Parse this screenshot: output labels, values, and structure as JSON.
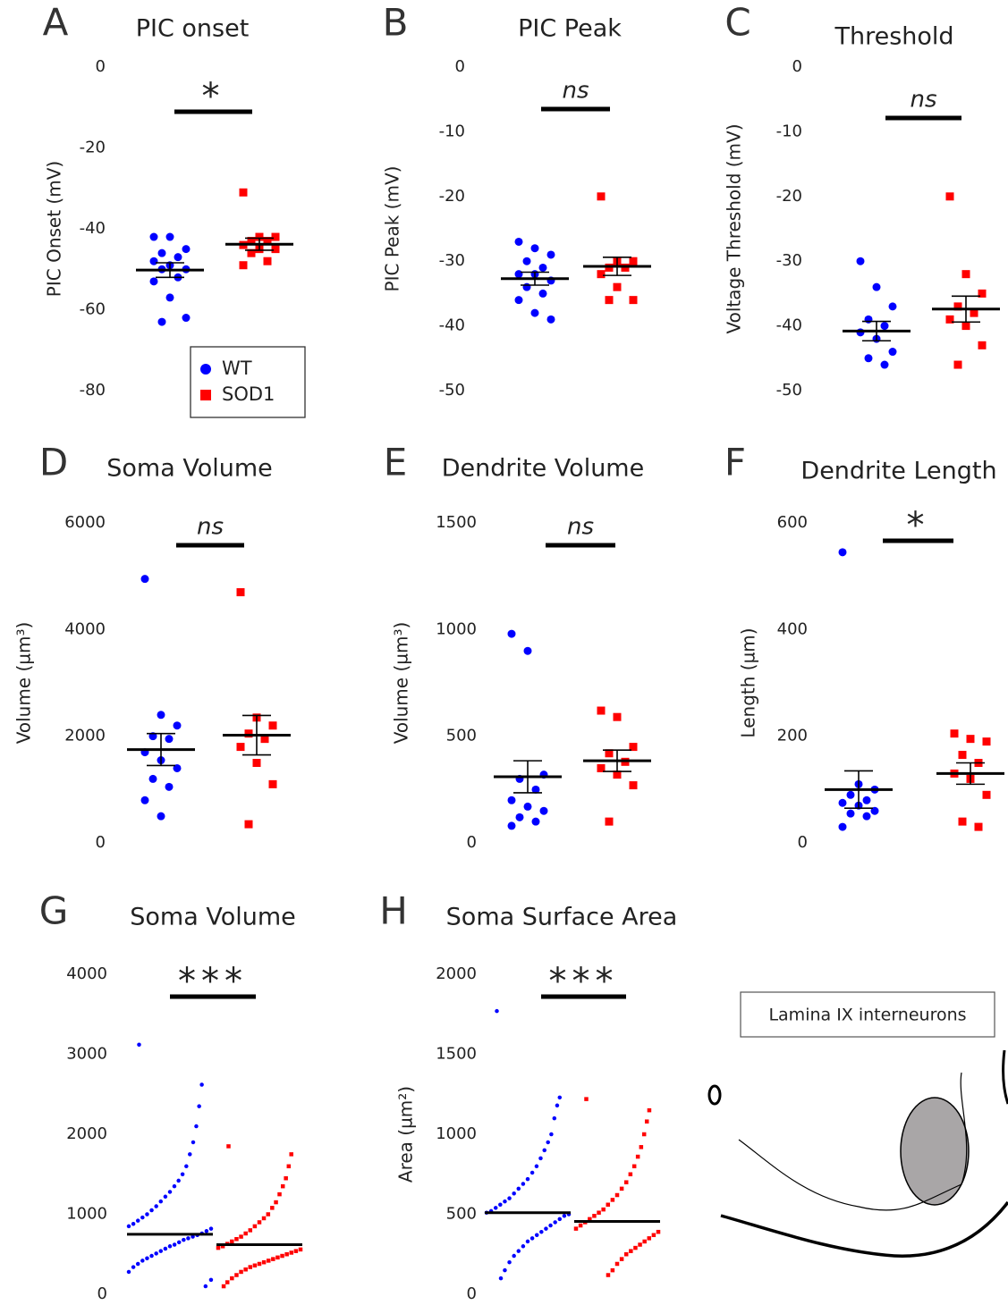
{
  "chart_data": [
    {
      "type": "strip",
      "letter": "A",
      "title": "PIC onset",
      "ylabel": "PIC Onset (mV)",
      "ylim": [
        -80,
        0
      ],
      "yticks": [
        0,
        -20,
        -40,
        -60,
        -80
      ],
      "significance": "*",
      "legend": true,
      "series": [
        {
          "name": "WT",
          "color": "#0000ff",
          "values": [
            -42,
            -42,
            -45,
            -46,
            -47,
            -48,
            -49,
            -50,
            -50,
            -52,
            -53,
            -57,
            -62,
            -63
          ],
          "mean": -50.2,
          "sem": 1.8
        },
        {
          "name": "SOD1",
          "color": "#ff0000",
          "values": [
            -31,
            -42,
            -42,
            -43,
            -43,
            -44,
            -45,
            -45,
            -46,
            -48,
            -49
          ],
          "mean": -43.8,
          "sem": 1.5
        }
      ]
    },
    {
      "type": "strip",
      "letter": "B",
      "title": "PIC Peak",
      "ylabel": "PIC Peak (mV)",
      "ylim": [
        -50,
        0
      ],
      "yticks": [
        0,
        -10,
        -20,
        -30,
        -40,
        -50
      ],
      "significance": "ns",
      "series": [
        {
          "color": "#0000ff",
          "values": [
            -27,
            -28,
            -29,
            -30,
            -31,
            -32,
            -32,
            -33,
            -34,
            -35,
            -36,
            -38,
            -39
          ],
          "mean": -32.7,
          "sem": 1.0
        },
        {
          "color": "#ff0000",
          "values": [
            -20,
            -30,
            -30,
            -31,
            -31,
            -32,
            -34,
            -36,
            -36
          ],
          "mean": -30.8,
          "sem": 1.4
        }
      ]
    },
    {
      "type": "strip",
      "letter": "C",
      "title": "Threshold",
      "ylabel": "Voltage Threshold (mV)",
      "ylim": [
        -50,
        0
      ],
      "yticks": [
        0,
        -10,
        -20,
        -30,
        -40,
        -50
      ],
      "significance": "ns",
      "series": [
        {
          "color": "#0000ff",
          "values": [
            -30,
            -34,
            -37,
            -39,
            -40,
            -41,
            -42,
            -44,
            -45,
            -46
          ],
          "mean": -40.8,
          "sem": 1.5
        },
        {
          "color": "#ff0000",
          "values": [
            -20,
            -32,
            -35,
            -37,
            -38,
            -39,
            -40,
            -43,
            -46
          ],
          "mean": -37.4,
          "sem": 2.0
        }
      ]
    },
    {
      "type": "strip",
      "letter": "D",
      "title": "Soma Volume",
      "ylabel": "Volume (µm³)",
      "ylim": [
        0,
        6000
      ],
      "yticks": [
        6000,
        4000,
        2000,
        0
      ],
      "significance": "ns",
      "series": [
        {
          "color": "#0000ff",
          "values": [
            4950,
            2400,
            2200,
            2000,
            1950,
            1700,
            1550,
            1400,
            1200,
            1050,
            800,
            500
          ],
          "mean": 1750,
          "sem": 300
        },
        {
          "color": "#ff0000",
          "values": [
            4700,
            2350,
            2200,
            2050,
            1950,
            1800,
            1500,
            1100,
            350
          ],
          "mean": 2020,
          "sem": 370
        }
      ]
    },
    {
      "type": "strip",
      "letter": "E",
      "title": "Dendrite Volume",
      "ylabel": "Volume (µm³)",
      "ylim": [
        0,
        1500
      ],
      "yticks": [
        1500,
        1000,
        500,
        0
      ],
      "significance": "ns",
      "series": [
        {
          "color": "#0000ff",
          "values": [
            980,
            900,
            320,
            300,
            250,
            200,
            170,
            150,
            120,
            100,
            80
          ],
          "mean": 310,
          "sem": 75
        },
        {
          "color": "#ff0000",
          "values": [
            620,
            590,
            450,
            420,
            380,
            350,
            320,
            270,
            100
          ],
          "mean": 385,
          "sem": 50
        }
      ]
    },
    {
      "type": "strip",
      "letter": "F",
      "title": "Dendrite Length",
      "ylabel": "Length (µm)",
      "ylim": [
        0,
        600
      ],
      "yticks": [
        600,
        400,
        200,
        0
      ],
      "significance": "*",
      "series": [
        {
          "color": "#0000ff",
          "values": [
            545,
            110,
            100,
            90,
            80,
            75,
            70,
            60,
            55,
            50,
            30
          ],
          "mean": 100,
          "sem": 35
        },
        {
          "color": "#ff0000",
          "values": [
            205,
            195,
            190,
            165,
            150,
            130,
            120,
            90,
            40,
            30
          ],
          "mean": 130,
          "sem": 20
        }
      ]
    },
    {
      "type": "swarm",
      "letter": "G",
      "title": "Soma Volume",
      "ylim": [
        0,
        4000
      ],
      "yticks": [
        4000,
        3000,
        2000,
        1000,
        0
      ],
      "significance": "***",
      "series": [
        {
          "color": "#0000ff",
          "values": [
            3120,
            2620,
            2350,
            2100,
            1900,
            1750,
            1600,
            1500,
            1420,
            1350,
            1280,
            1220,
            1160,
            1100,
            1050,
            1000,
            960,
            920,
            880,
            850,
            820,
            790,
            760,
            740,
            720,
            700,
            680,
            650,
            620,
            600,
            570,
            540,
            510,
            480,
            450,
            420,
            380,
            340,
            280,
            180,
            100
          ],
          "mean": 750
        },
        {
          "color": "#ff0000",
          "values": [
            1850,
            1750,
            1600,
            1450,
            1350,
            1250,
            1150,
            1080,
            1000,
            950,
            900,
            850,
            800,
            760,
            720,
            690,
            660,
            630,
            600,
            580,
            560,
            540,
            520,
            500,
            480,
            460,
            440,
            420,
            400,
            380,
            360,
            340,
            310,
            280,
            240,
            200,
            150,
            100
          ],
          "mean": 620
        }
      ]
    },
    {
      "type": "swarm",
      "letter": "H",
      "title": "Soma Surface Area",
      "ylabel": "Area  (µm²)",
      "ylim": [
        0,
        2000
      ],
      "yticks": [
        2000,
        1500,
        1000,
        500,
        0
      ],
      "significance": "***",
      "series": [
        {
          "color": "#0000ff",
          "values": [
            1770,
            1230,
            1180,
            1100,
            1000,
            950,
            900,
            850,
            800,
            760,
            720,
            690,
            660,
            630,
            600,
            580,
            560,
            540,
            520,
            510,
            500,
            490,
            470,
            450,
            430,
            410,
            390,
            370,
            350,
            330,
            300,
            270,
            240,
            200,
            150,
            100
          ],
          "mean": 510
        },
        {
          "color": "#ff0000",
          "values": [
            1220,
            1150,
            1080,
            1000,
            920,
            860,
            800,
            750,
            700,
            660,
            620,
            590,
            560,
            530,
            510,
            490,
            470,
            450,
            430,
            410,
            390,
            370,
            350,
            330,
            310,
            290,
            270,
            250,
            220,
            190,
            150,
            120
          ],
          "mean": 455
        }
      ]
    }
  ],
  "inset": {
    "label": "Lamina IX interneurons"
  }
}
